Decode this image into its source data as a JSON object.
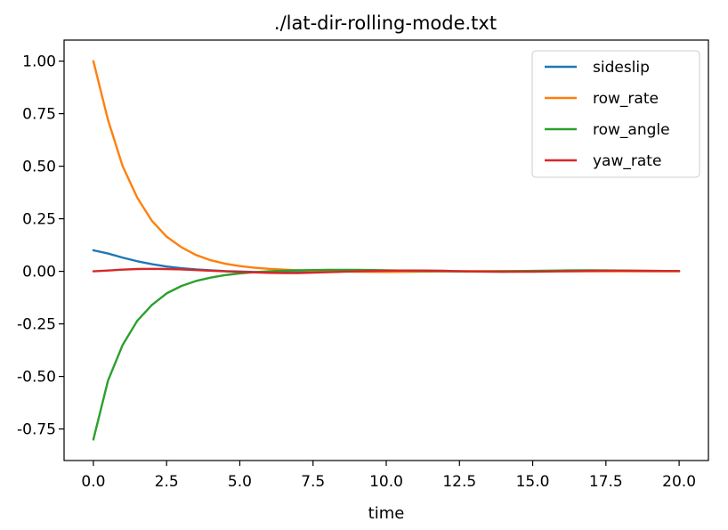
{
  "chart_data": {
    "type": "line",
    "title": "./lat-dir-rolling-mode.txt",
    "xlabel": "time",
    "ylabel": "",
    "xlim": [
      -1.0,
      21.0
    ],
    "ylim": [
      -0.9,
      1.1
    ],
    "x_ticks": [
      "0.0",
      "2.5",
      "5.0",
      "7.5",
      "10.0",
      "12.5",
      "15.0",
      "17.5",
      "20.0"
    ],
    "x_tick_values": [
      0,
      2.5,
      5,
      7.5,
      10,
      12.5,
      15,
      17.5,
      20
    ],
    "y_ticks": [
      "1.00",
      "0.75",
      "0.50",
      "0.25",
      "0.00",
      "-0.25",
      "-0.50",
      "-0.75"
    ],
    "y_tick_values": [
      1.0,
      0.75,
      0.5,
      0.25,
      0.0,
      -0.25,
      -0.5,
      -0.75
    ],
    "grid": false,
    "legend_position": "top-right",
    "x": [
      0,
      0.5,
      1,
      1.5,
      2,
      2.5,
      3,
      3.5,
      4,
      4.5,
      5,
      5.5,
      6,
      6.5,
      7,
      7.5,
      8,
      9,
      10,
      11,
      12,
      13,
      14,
      15,
      16,
      17,
      18,
      19,
      20
    ],
    "series": [
      {
        "name": "sideslip",
        "color": "#1f77b4",
        "values": [
          0.1,
          0.085,
          0.065,
          0.048,
          0.034,
          0.023,
          0.015,
          0.009,
          0.005,
          0.001,
          -0.001,
          -0.003,
          -0.004,
          -0.005,
          -0.005,
          -0.004,
          -0.002,
          0.001,
          0.004,
          0.004,
          0.002,
          -0.001,
          -0.002,
          0.0,
          0.002,
          0.003,
          0.002,
          0.001,
          0.001
        ]
      },
      {
        "name": "row_rate",
        "color": "#ff7f0e",
        "values": [
          1.0,
          0.72,
          0.5,
          0.35,
          0.24,
          0.165,
          0.115,
          0.078,
          0.053,
          0.036,
          0.025,
          0.017,
          0.012,
          0.008,
          0.005,
          0.003,
          0.001,
          -0.002,
          -0.003,
          -0.002,
          0.0,
          0.001,
          0.001,
          0.001,
          0.0,
          0.0,
          0.0,
          0.0,
          0.0
        ]
      },
      {
        "name": "row_angle",
        "color": "#2ca02c",
        "values": [
          -0.8,
          -0.52,
          -0.35,
          -0.235,
          -0.16,
          -0.105,
          -0.07,
          -0.046,
          -0.03,
          -0.018,
          -0.01,
          -0.004,
          0.0,
          0.003,
          0.005,
          0.006,
          0.007,
          0.007,
          0.005,
          0.002,
          0.0,
          -0.001,
          0.0,
          0.002,
          0.004,
          0.005,
          0.004,
          0.002,
          0.001
        ]
      },
      {
        "name": "yaw_rate",
        "color": "#d62728",
        "values": [
          0.0,
          0.004,
          0.008,
          0.011,
          0.012,
          0.011,
          0.009,
          0.006,
          0.003,
          0.0,
          -0.003,
          -0.005,
          -0.007,
          -0.008,
          -0.008,
          -0.006,
          -0.004,
          0.0,
          0.003,
          0.004,
          0.002,
          -0.001,
          -0.002,
          -0.002,
          0.0,
          0.002,
          0.003,
          0.002,
          0.001
        ]
      }
    ]
  }
}
